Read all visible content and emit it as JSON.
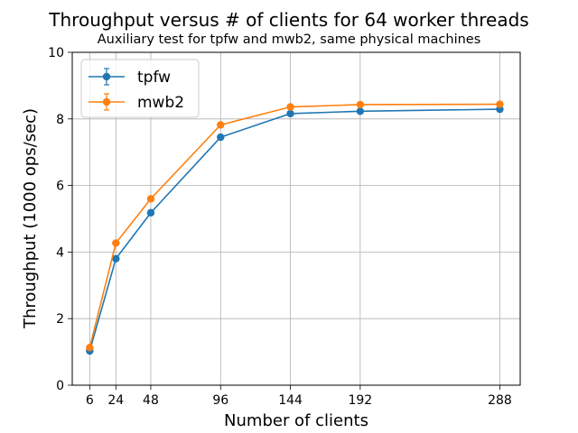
{
  "chart_data": {
    "type": "line",
    "title": "Throughput versus # of clients for 64 worker threads",
    "subtitle": "Auxiliary test for tpfw and mwb2, same physical machines",
    "xlabel": "Number of clients",
    "ylabel": "Throughput (1000 ops/sec)",
    "x": [
      6,
      24,
      48,
      96,
      144,
      192,
      288
    ],
    "xticks": [
      "6",
      "24",
      "48",
      "96",
      "144",
      "192",
      "288"
    ],
    "yticks": [
      "0",
      "2",
      "4",
      "6",
      "8",
      "10"
    ],
    "xlim": [
      -6.0,
      302.0
    ],
    "ylim": [
      0,
      10
    ],
    "grid": true,
    "legend_position": "top-left",
    "series": [
      {
        "name": "tpfw",
        "color": "#1f77b4",
        "values": [
          1.03,
          3.8,
          5.18,
          7.45,
          8.16,
          8.23,
          8.29
        ]
      },
      {
        "name": "mwb2",
        "color": "#ff7f0e",
        "values": [
          1.13,
          4.27,
          5.6,
          7.82,
          8.36,
          8.43,
          8.44
        ]
      }
    ]
  }
}
